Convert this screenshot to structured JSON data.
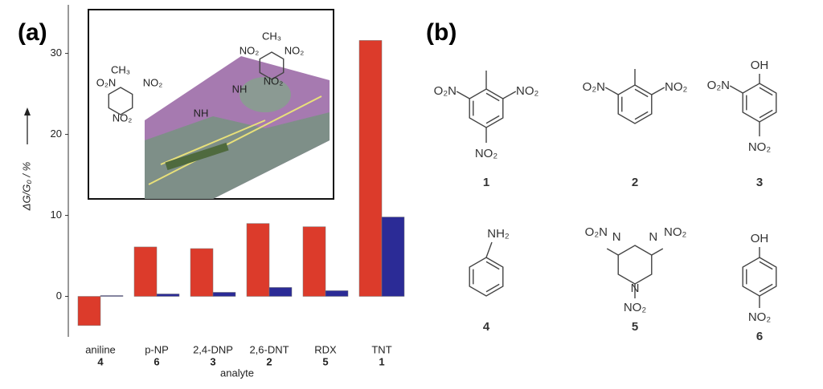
{
  "panels": [
    "(a)",
    "(b)"
  ],
  "chart_data": {
    "type": "bar",
    "y_label": "ΔG/G₀ / %",
    "x_label": "analyte",
    "categories": [
      "aniline",
      "p-NP",
      "2,4-DNP",
      "2,6-DNT",
      "RDX",
      "TNT"
    ],
    "category_numbers": [
      "4",
      "6",
      "3",
      "2",
      "5",
      "1"
    ],
    "series": [
      {
        "color": "#dc3b2b",
        "values": [
          -3.6,
          6.1,
          5.9,
          9.0,
          8.6,
          31.6
        ]
      },
      {
        "color": "#2b2b96",
        "values": [
          0.1,
          0.3,
          0.5,
          1.1,
          0.7,
          9.8
        ]
      }
    ],
    "ylim": [
      -5,
      36
    ],
    "yticks": [
      0,
      10,
      20,
      30
    ]
  },
  "inset_labels": [
    "CH₃",
    "O₂N",
    "NO₂",
    "NO₂",
    "CH₃",
    "NO₂",
    "NO₂",
    "NO₂",
    "NH",
    "NH"
  ],
  "structures": [
    {
      "number": "1",
      "labels": [
        "O₂N",
        "NO₂",
        "NO₂"
      ]
    },
    {
      "number": "2",
      "labels": [
        "O₂N",
        "NO₂"
      ]
    },
    {
      "number": "3",
      "labels": [
        "OH",
        "O₂N",
        "NO₂"
      ]
    },
    {
      "number": "4",
      "labels": [
        "NH₂"
      ]
    },
    {
      "number": "5",
      "labels": [
        "O₂N",
        "N",
        "N",
        "NO₂",
        "N",
        "NO₂"
      ]
    },
    {
      "number": "6",
      "labels": [
        "OH",
        "NO₂"
      ]
    }
  ]
}
